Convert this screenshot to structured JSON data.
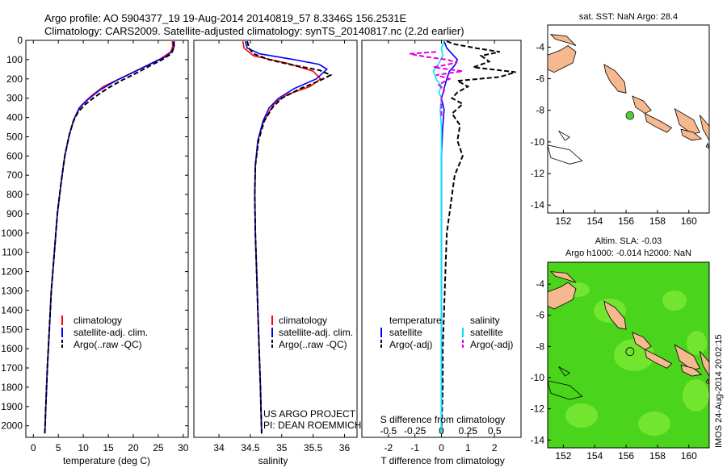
{
  "header": {
    "line1": "Argo profile: AO 5904377_19 19-Aug-2014 20140819_57 8.3346S 156.2531E",
    "line2": "Climatology: CARS2009. Satellite-adjusted climatology: synTS_20140817.nc (2.2d earlier)"
  },
  "colors": {
    "climatology": "#ff0000",
    "satellite": "#0000ff",
    "argo": "#000000",
    "sat_temperature": "#0000ff",
    "sat_salinity": "#00e5ff",
    "argo_temperature": "#000000",
    "argo_salinity": "#e000e0",
    "land": "#f5b88f",
    "sla_field": "#4ad41c",
    "sla_field_light": "#8ef23a",
    "marker": "#59c93a"
  },
  "chart_data": [
    {
      "type": "line",
      "name": "temperature-profile",
      "xlabel": "temperature (deg C)",
      "ylabel": "",
      "xlim": [
        -1.5,
        31
      ],
      "ylim": [
        2060,
        0
      ],
      "xticks": [
        0,
        5,
        10,
        15,
        20,
        25,
        30
      ],
      "yticks": [
        0,
        100,
        200,
        300,
        400,
        500,
        600,
        700,
        800,
        900,
        1000,
        1100,
        1200,
        1300,
        1400,
        1500,
        1600,
        1700,
        1800,
        1900,
        2000
      ],
      "legend": [
        "climatology",
        "satellite-adj. clim.",
        "Argo(..raw -QC)"
      ],
      "series": [
        {
          "name": "climatology",
          "style": "solid",
          "points": [
            [
              27.8,
              5
            ],
            [
              27.9,
              30
            ],
            [
              27.5,
              60
            ],
            [
              25.5,
              95
            ],
            [
              22,
              140
            ],
            [
              18,
              190
            ],
            [
              14,
              240
            ],
            [
              11.5,
              290
            ],
            [
              9.5,
              340
            ],
            [
              8.3,
              400
            ],
            [
              7.3,
              480
            ],
            [
              6.3,
              600
            ],
            [
              5.5,
              750
            ],
            [
              4.8,
              900
            ],
            [
              4.2,
              1100
            ],
            [
              3.6,
              1300
            ],
            [
              3.2,
              1500
            ],
            [
              2.8,
              1700
            ],
            [
              2.5,
              1900
            ],
            [
              2.3,
              2040
            ]
          ]
        },
        {
          "name": "satellite-adj. clim.",
          "style": "solid",
          "points": [
            [
              28.2,
              5
            ],
            [
              28.2,
              30
            ],
            [
              27.8,
              55
            ],
            [
              26.5,
              85
            ],
            [
              24,
              115
            ],
            [
              20.5,
              160
            ],
            [
              16.5,
              210
            ],
            [
              13.2,
              260
            ],
            [
              10.8,
              310
            ],
            [
              9.2,
              350
            ],
            [
              8.1,
              410
            ],
            [
              7.2,
              490
            ],
            [
              6.3,
              600
            ],
            [
              5.5,
              750
            ],
            [
              4.8,
              900
            ],
            [
              4.2,
              1100
            ],
            [
              3.6,
              1300
            ],
            [
              3.2,
              1500
            ],
            [
              2.8,
              1700
            ],
            [
              2.5,
              1900
            ],
            [
              2.3,
              2040
            ]
          ]
        },
        {
          "name": "Argo(..raw -QC)",
          "style": "dashed",
          "points": [
            [
              28.1,
              5
            ],
            [
              28.1,
              40
            ],
            [
              27.6,
              70
            ],
            [
              25.8,
              100
            ],
            [
              23.5,
              130
            ],
            [
              21,
              165
            ],
            [
              17.5,
              210
            ],
            [
              14.8,
              250
            ],
            [
              12.5,
              290
            ],
            [
              10.5,
              330
            ],
            [
              9,
              370
            ],
            [
              8,
              420
            ],
            [
              7.1,
              500
            ],
            [
              6.3,
              600
            ],
            [
              5.5,
              750
            ],
            [
              4.8,
              900
            ],
            [
              4.2,
              1100
            ],
            [
              3.6,
              1300
            ],
            [
              3.2,
              1500
            ],
            [
              2.8,
              1700
            ],
            [
              2.5,
              1900
            ],
            [
              2.3,
              2040
            ]
          ]
        }
      ]
    },
    {
      "type": "line",
      "name": "salinity-profile",
      "xlabel": "salinity",
      "ylabel": "",
      "xlim": [
        33.6,
        36.2
      ],
      "ylim": [
        2060,
        0
      ],
      "xticks": [
        34,
        34.5,
        35,
        35.5,
        36
      ],
      "legend": [
        "climatology",
        "satellite-adj. clim.",
        "Argo(..raw -QC)"
      ],
      "series": [
        {
          "name": "climatology",
          "style": "solid",
          "points": [
            [
              34.38,
              5
            ],
            [
              34.4,
              40
            ],
            [
              34.55,
              80
            ],
            [
              35.1,
              120
            ],
            [
              35.5,
              160
            ],
            [
              35.62,
              200
            ],
            [
              35.45,
              240
            ],
            [
              35.1,
              280
            ],
            [
              34.9,
              320
            ],
            [
              34.8,
              370
            ],
            [
              34.7,
              430
            ],
            [
              34.62,
              520
            ],
            [
              34.58,
              650
            ],
            [
              34.57,
              800
            ],
            [
              34.58,
              1000
            ],
            [
              34.6,
              1200
            ],
            [
              34.62,
              1400
            ],
            [
              34.64,
              1600
            ],
            [
              34.66,
              1800
            ],
            [
              34.68,
              2040
            ]
          ]
        },
        {
          "name": "satellite-adj. clim.",
          "style": "solid",
          "points": [
            [
              34.42,
              5
            ],
            [
              34.45,
              40
            ],
            [
              34.65,
              70
            ],
            [
              35.2,
              100
            ],
            [
              35.6,
              125
            ],
            [
              35.72,
              150
            ],
            [
              35.55,
              200
            ],
            [
              35.2,
              250
            ],
            [
              34.95,
              300
            ],
            [
              34.8,
              350
            ],
            [
              34.7,
              420
            ],
            [
              34.62,
              520
            ],
            [
              34.58,
              650
            ],
            [
              34.57,
              800
            ],
            [
              34.58,
              1000
            ],
            [
              34.6,
              1200
            ],
            [
              34.62,
              1400
            ],
            [
              34.64,
              1600
            ],
            [
              34.66,
              1800
            ],
            [
              34.68,
              2040
            ]
          ]
        },
        {
          "name": "Argo(..raw -QC)",
          "style": "dashed",
          "points": [
            [
              34.45,
              5
            ],
            [
              34.48,
              40
            ],
            [
              34.55,
              70
            ],
            [
              34.8,
              100
            ],
            [
              35.2,
              130
            ],
            [
              35.6,
              155
            ],
            [
              35.78,
              180
            ],
            [
              35.6,
              210
            ],
            [
              35.3,
              250
            ],
            [
              35.0,
              300
            ],
            [
              34.85,
              350
            ],
            [
              34.72,
              420
            ],
            [
              34.63,
              520
            ],
            [
              34.58,
              650
            ],
            [
              34.57,
              800
            ],
            [
              34.58,
              1000
            ],
            [
              34.6,
              1200
            ],
            [
              34.62,
              1400
            ],
            [
              34.64,
              1600
            ],
            [
              34.66,
              1800
            ],
            [
              34.68,
              2040
            ]
          ]
        }
      ]
    },
    {
      "type": "line",
      "name": "difference-from-climatology",
      "xlabel": "T difference from climatology",
      "x2label": "S difference from climatology",
      "xlim": [
        -3,
        3
      ],
      "ylim": [
        2060,
        0
      ],
      "xticks": [
        -2,
        -1,
        0,
        1,
        2
      ],
      "xtick_labels": [
        "-2",
        "-1",
        "0",
        "1",
        "2"
      ],
      "x2ticks": [
        -2,
        -1,
        0,
        1,
        2
      ],
      "x2tick_labels": [
        "-0.5",
        "-0.25",
        "0",
        "0.25",
        "0.5"
      ],
      "legend_titles": [
        "temperature",
        "salinity"
      ],
      "legend": [
        "satellite",
        "Argo(-adj)",
        "satellite",
        "Argo(-adj)"
      ],
      "series": [
        {
          "name": "temperature satellite",
          "style": "solid",
          "points": [
            [
              0.1,
              5
            ],
            [
              0.2,
              40
            ],
            [
              0.4,
              70
            ],
            [
              0.6,
              100
            ],
            [
              0.5,
              130
            ],
            [
              0.3,
              160
            ],
            [
              0.2,
              200
            ],
            [
              0.1,
              250
            ],
            [
              0,
              300
            ],
            [
              0.1,
              360
            ],
            [
              0.05,
              450
            ],
            [
              0,
              600
            ],
            [
              0,
              800
            ],
            [
              0,
              1000
            ],
            [
              0,
              1300
            ],
            [
              0,
              1600
            ],
            [
              0,
              1900
            ],
            [
              0,
              2040
            ]
          ]
        },
        {
          "name": "temperature Argo(-adj)",
          "style": "dashed",
          "points": [
            [
              0.2,
              5
            ],
            [
              0.5,
              20
            ],
            [
              1.3,
              40
            ],
            [
              2.2,
              60
            ],
            [
              1.5,
              80
            ],
            [
              1.8,
              110
            ],
            [
              1.2,
              140
            ],
            [
              2.8,
              165
            ],
            [
              2.2,
              190
            ],
            [
              0.6,
              210
            ],
            [
              1,
              240
            ],
            [
              0.6,
              270
            ],
            [
              0.4,
              300
            ],
            [
              0.8,
              330
            ],
            [
              0.4,
              380
            ],
            [
              0.7,
              440
            ],
            [
              0.6,
              520
            ],
            [
              0.8,
              600
            ],
            [
              0.5,
              700
            ],
            [
              0.4,
              800
            ],
            [
              0.3,
              900
            ],
            [
              0.2,
              1000
            ],
            [
              0.15,
              1200
            ],
            [
              0.1,
              1400
            ],
            [
              0.05,
              1600
            ],
            [
              0.05,
              1800
            ],
            [
              0,
              2040
            ]
          ]
        },
        {
          "name": "salinity satellite",
          "style": "solid",
          "points": [
            [
              0.1,
              5
            ],
            [
              0,
              40
            ],
            [
              0.05,
              80
            ],
            [
              -0.1,
              120
            ],
            [
              -0.3,
              160
            ],
            [
              -0.2,
              200
            ],
            [
              0,
              240
            ],
            [
              -0.1,
              270
            ],
            [
              0,
              300
            ],
            [
              -0.05,
              360
            ],
            [
              0,
              450
            ],
            [
              0,
              600
            ],
            [
              0,
              800
            ],
            [
              0,
              1000
            ],
            [
              0,
              1300
            ],
            [
              0,
              1600
            ],
            [
              0,
              1900
            ],
            [
              0,
              2040
            ]
          ]
        },
        {
          "name": "salinity Argo(-adj)",
          "style": "dashed",
          "points": [
            [
              -0.2,
              60
            ],
            [
              -1.2,
              70
            ],
            [
              -0.6,
              85
            ],
            [
              0.2,
              100
            ],
            [
              0.6,
              115
            ],
            [
              -0.3,
              140
            ],
            [
              0.8,
              160
            ],
            [
              -0.2,
              180
            ],
            [
              0.3,
              200
            ],
            [
              -0.1,
              230
            ],
            [
              0.1,
              260
            ],
            [
              0,
              300
            ],
            [
              0,
              350
            ],
            [
              0,
              400
            ]
          ]
        }
      ]
    },
    {
      "type": "other",
      "name": "sst-map",
      "title": "sat. SST: NaN Argo: 28.4",
      "xticks": [
        152,
        154,
        156,
        158,
        160
      ],
      "yticks": [
        -4,
        -6,
        -8,
        -10,
        -12,
        -14
      ],
      "xlim": [
        151,
        161.3
      ],
      "ylim": [
        -14.5,
        -2.6
      ],
      "float_position": {
        "lon": 156.25,
        "lat": -8.33
      }
    },
    {
      "type": "other",
      "name": "sla-map",
      "title_line1": "Altim. SLA: -0.03",
      "title_line2": "Argo h1000: -0.014 h2000: NaN",
      "xticks": [
        152,
        154,
        156,
        158,
        160
      ],
      "yticks": [
        -4,
        -6,
        -8,
        -10,
        -12,
        -14
      ],
      "xlim": [
        151,
        161.3
      ],
      "ylim": [
        -14.5,
        -2.6
      ],
      "float_position": {
        "lon": 156.25,
        "lat": -8.33
      }
    }
  ],
  "footer": {
    "credit_line1": "US ARGO PROJECT",
    "credit_line2": "PI: DEAN ROEMMICH",
    "watermark": "IMOS 24-Aug-2014 20:02:15"
  }
}
